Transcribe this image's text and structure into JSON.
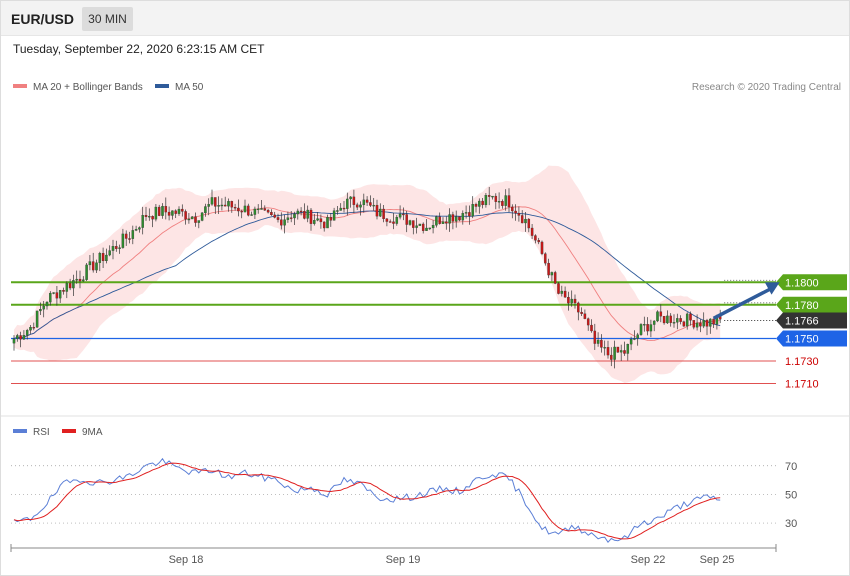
{
  "header": {
    "symbol": "EUR/USD",
    "timeframe": "30 MIN"
  },
  "datetime": "Tuesday, September 22, 2020 6:23:15 AM CET",
  "legend_main": [
    {
      "label": "MA 20 + Bollinger Bands",
      "color": "#f08080"
    },
    {
      "label": "MA 50",
      "color": "#2f5b9a"
    }
  ],
  "credit": "Research © 2020 Trading Central",
  "legend_rsi": [
    {
      "label": "RSI",
      "color": "#5b7fd6"
    },
    {
      "label": "9MA",
      "color": "#e02020"
    }
  ],
  "colors": {
    "up": "#2e8b2e",
    "down": "#c81818",
    "band": "#fde0e0",
    "green_level": "#5aa61a",
    "blue_level": "#1e64e6",
    "red_level": "#e05050",
    "current_tag": "#333333",
    "arrow": "#2f5b9a"
  },
  "chart_data": [
    {
      "type": "candlestick",
      "title": "EUR/USD",
      "ylim": [
        1.169,
        1.1955
      ],
      "levels": [
        {
          "value": 1.18,
          "label": "1.1800",
          "style": "green"
        },
        {
          "value": 1.178,
          "label": "1.1780",
          "style": "green"
        },
        {
          "value": 1.1766,
          "label": "1.1766",
          "style": "current"
        },
        {
          "value": 1.175,
          "label": "1.1750",
          "style": "blue"
        },
        {
          "value": 1.173,
          "label": "1.1730",
          "style": "red"
        },
        {
          "value": 1.171,
          "label": "1.1710",
          "style": "red"
        }
      ],
      "x_ticks": [
        "Sep 18",
        "Sep 19",
        "Sep 22",
        "Sep 25"
      ],
      "anchors": [
        [
          0,
          1.175
        ],
        [
          5,
          1.176
        ],
        [
          10,
          1.1785
        ],
        [
          15,
          1.1795
        ],
        [
          20,
          1.1805
        ],
        [
          25,
          1.1818
        ],
        [
          30,
          1.183
        ],
        [
          35,
          1.1842
        ],
        [
          40,
          1.186
        ],
        [
          45,
          1.1863
        ],
        [
          50,
          1.1862
        ],
        [
          55,
          1.1858
        ],
        [
          60,
          1.187
        ],
        [
          65,
          1.1868
        ],
        [
          70,
          1.1865
        ],
        [
          75,
          1.186
        ],
        [
          80,
          1.1855
        ],
        [
          85,
          1.1862
        ],
        [
          90,
          1.1858
        ],
        [
          95,
          1.1852
        ],
        [
          100,
          1.187
        ],
        [
          105,
          1.1873
        ],
        [
          110,
          1.1862
        ],
        [
          115,
          1.1858
        ],
        [
          120,
          1.1855
        ],
        [
          125,
          1.185
        ],
        [
          130,
          1.1858
        ],
        [
          135,
          1.186
        ],
        [
          140,
          1.1868
        ],
        [
          145,
          1.1875
        ],
        [
          150,
          1.1872
        ],
        [
          155,
          1.1855
        ],
        [
          160,
          1.1825
        ],
        [
          165,
          1.179
        ],
        [
          168,
          1.1782
        ],
        [
          172,
          1.1772
        ],
        [
          176,
          1.1745
        ],
        [
          180,
          1.1736
        ],
        [
          185,
          1.1738
        ],
        [
          190,
          1.1758
        ],
        [
          195,
          1.1768
        ],
        [
          200,
          1.1768
        ],
        [
          205,
          1.1766
        ],
        [
          210,
          1.1764
        ],
        [
          214,
          1.1766
        ]
      ],
      "trend_arrow": {
        "from": [
          212,
          1.1768
        ],
        "to": [
          232,
          1.18
        ]
      }
    },
    {
      "type": "line",
      "title": "RSI",
      "ylim": [
        14,
        88
      ],
      "y_ticks": [
        70,
        50,
        30
      ],
      "rsi_anchors": [
        [
          0,
          30
        ],
        [
          5,
          33
        ],
        [
          10,
          44
        ],
        [
          15,
          57
        ],
        [
          20,
          61
        ],
        [
          25,
          58
        ],
        [
          30,
          60
        ],
        [
          35,
          63
        ],
        [
          40,
          70
        ],
        [
          45,
          73
        ],
        [
          50,
          68
        ],
        [
          55,
          65
        ],
        [
          60,
          67
        ],
        [
          65,
          62
        ],
        [
          70,
          65
        ],
        [
          75,
          62
        ],
        [
          80,
          60
        ],
        [
          85,
          52
        ],
        [
          90,
          55
        ],
        [
          95,
          50
        ],
        [
          100,
          60
        ],
        [
          105,
          57
        ],
        [
          110,
          48
        ],
        [
          115,
          47
        ],
        [
          120,
          48
        ],
        [
          125,
          51
        ],
        [
          130,
          54
        ],
        [
          135,
          52
        ],
        [
          140,
          60
        ],
        [
          145,
          65
        ],
        [
          150,
          61
        ],
        [
          155,
          45
        ],
        [
          160,
          26
        ],
        [
          165,
          22
        ],
        [
          170,
          28
        ],
        [
          175,
          22
        ],
        [
          180,
          19
        ],
        [
          185,
          19
        ],
        [
          190,
          30
        ],
        [
          195,
          33
        ],
        [
          200,
          40
        ],
        [
          205,
          45
        ],
        [
          210,
          48
        ],
        [
          214,
          47
        ]
      ]
    }
  ]
}
